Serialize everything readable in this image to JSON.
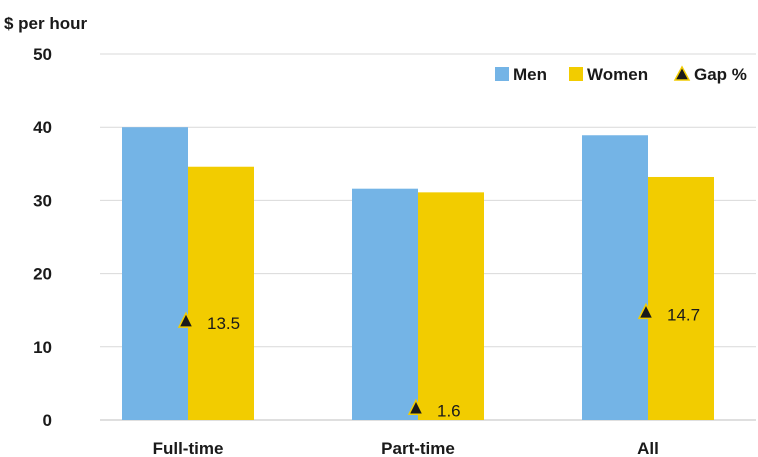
{
  "chart_data": {
    "type": "bar",
    "ylabel": "$ per hour",
    "ylim": [
      0,
      50
    ],
    "yticks": [
      0,
      10,
      20,
      30,
      40,
      50
    ],
    "categories": [
      "Full-time",
      "Part-time",
      "All"
    ],
    "series": [
      {
        "name": "Men",
        "color": "#74b4e6",
        "values": [
          40.0,
          31.6,
          38.9
        ]
      },
      {
        "name": "Women",
        "color": "#f2cc00",
        "values": [
          34.6,
          31.1,
          33.2
        ]
      }
    ],
    "markers": {
      "name": "Gap %",
      "shape": "triangle",
      "color": "#1a1a1a",
      "outline": "#f2cc00",
      "values": [
        13.5,
        1.6,
        14.7
      ],
      "labels": [
        "13.5",
        "1.6",
        "14.7"
      ]
    },
    "legend": "top-right",
    "grid": true
  }
}
